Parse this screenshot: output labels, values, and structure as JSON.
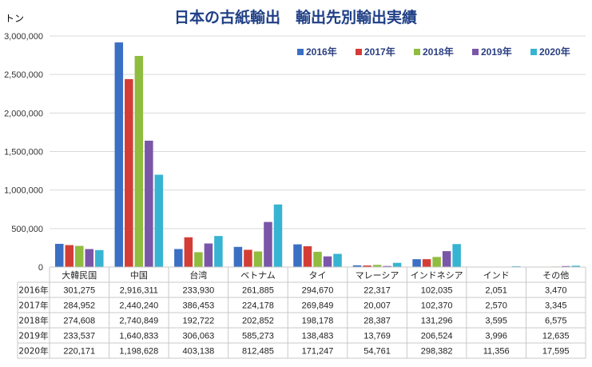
{
  "chart_data": {
    "type": "bar",
    "title": "日本の古紙輸出　輸出先別輸出実績",
    "ylabel": "トン",
    "ylim": [
      0,
      3000000
    ],
    "yticks": [
      "0",
      "500,000",
      "1,000,000",
      "1,500,000",
      "2,000,000",
      "2,500,000",
      "3,000,000"
    ],
    "grid": true,
    "legend": "top-right",
    "categories": [
      "大韓民国",
      "中国",
      "台湾",
      "ベトナム",
      "タイ",
      "マレーシア",
      "インドネシア",
      "インド",
      "その他"
    ],
    "series": [
      {
        "name": "2016年",
        "color": "#3b6fc4",
        "values": [
          301275,
          2916311,
          233930,
          261885,
          294670,
          22317,
          102035,
          2051,
          3470
        ],
        "labels": [
          "301,275",
          "2,916,311",
          "233,930",
          "261,885",
          "294,670",
          "22,317",
          "102,035",
          "2,051",
          "3,470"
        ]
      },
      {
        "name": "2017年",
        "color": "#d33d36",
        "values": [
          284952,
          2440240,
          386453,
          224178,
          269849,
          20007,
          102370,
          2570,
          3345
        ],
        "labels": [
          "284,952",
          "2,440,240",
          "386,453",
          "224,178",
          "269,849",
          "20,007",
          "102,370",
          "2,570",
          "3,345"
        ]
      },
      {
        "name": "2018年",
        "color": "#90bc3f",
        "values": [
          274608,
          2740849,
          192722,
          202852,
          198178,
          28387,
          131296,
          3595,
          6575
        ],
        "labels": [
          "274,608",
          "2,740,849",
          "192,722",
          "202,852",
          "198,178",
          "28,387",
          "131,296",
          "3,595",
          "6,575"
        ]
      },
      {
        "name": "2019年",
        "color": "#7a56a8",
        "values": [
          233537,
          1640833,
          306063,
          585273,
          138483,
          13769,
          206524,
          3996,
          12635
        ],
        "labels": [
          "233,537",
          "1,640,833",
          "306,063",
          "585,273",
          "138,483",
          "13,769",
          "206,524",
          "3,996",
          "12,635"
        ]
      },
      {
        "name": "2020年",
        "color": "#37b4d1",
        "values": [
          220171,
          1198628,
          403138,
          812485,
          171247,
          54761,
          298382,
          11356,
          17595
        ],
        "labels": [
          "220,171",
          "1,198,628",
          "403,138",
          "812,485",
          "171,247",
          "54,761",
          "298,382",
          "11,356",
          "17,595"
        ]
      }
    ]
  }
}
